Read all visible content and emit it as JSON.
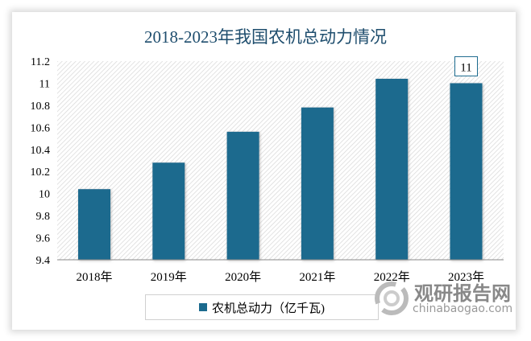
{
  "chart_data": {
    "type": "bar",
    "title": "2018-2023年我国农机总动力情况",
    "categories": [
      "2018年",
      "2019年",
      "2020年",
      "2021年",
      "2022年",
      "2023年"
    ],
    "series": [
      {
        "name": "农机总动力（亿千瓦)",
        "values": [
          10.04,
          10.28,
          10.56,
          10.78,
          11.04,
          11.0
        ]
      }
    ],
    "ylim": [
      9.4,
      11.2
    ],
    "yticks": [
      "9.4",
      "9.6",
      "9.8",
      "10",
      "10.2",
      "10.4",
      "10.6",
      "10.8",
      "11",
      "11.2"
    ],
    "data_labels": [
      {
        "category": "2023年",
        "text": "11"
      }
    ],
    "legend": "bottom",
    "grid": false,
    "colors": {
      "bar": "#1b6a8e",
      "title": "#1f4e6e"
    }
  },
  "watermark": {
    "cn": "观研报告网",
    "en": "chinabaogao.com"
  }
}
